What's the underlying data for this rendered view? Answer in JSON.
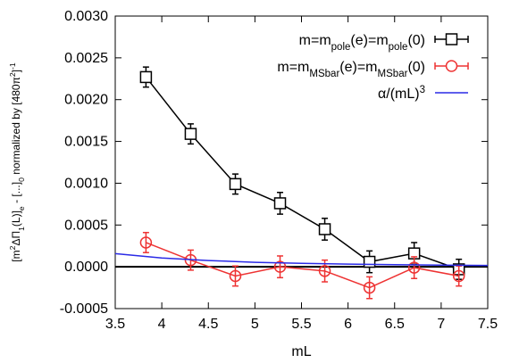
{
  "chart_data": {
    "type": "scatter",
    "xlabel": "mL",
    "ylabel": {
      "full": "[m²ΔΠ1(L)]e - [...]0 normalized by [480π²]⁻¹",
      "parts": [
        {
          "t": "[m",
          "s": "n"
        },
        {
          "t": "2",
          "s": "sup"
        },
        {
          "t": "ΔΠ",
          "s": "n"
        },
        {
          "t": "1",
          "s": "sub"
        },
        {
          "t": "(L)]",
          "s": "n"
        },
        {
          "t": "e",
          "s": "sub"
        },
        {
          "t": " - [...]",
          "s": "n"
        },
        {
          "t": "0",
          "s": "sub"
        },
        {
          "t": " normalized by [480π",
          "s": "n"
        },
        {
          "t": "2",
          "s": "sup"
        },
        {
          "t": "]",
          "s": "n"
        },
        {
          "t": "-1",
          "s": "sup"
        }
      ]
    },
    "xlim": [
      3.5,
      7.5
    ],
    "ylim": [
      -0.0005,
      0.003
    ],
    "xticks": [
      "3.5",
      "4",
      "4.5",
      "5",
      "5.5",
      "6",
      "6.5",
      "7",
      "7.5"
    ],
    "yticks": [
      "-0.0005",
      "0.0000",
      "0.0005",
      "0.0010",
      "0.0015",
      "0.0020",
      "0.0025",
      "0.0030"
    ],
    "zero_line": true,
    "grid": false,
    "legend_position": "top-right",
    "series": [
      {
        "name": "m=m_pole(e)=m_pole(0)",
        "legend_parts": [
          {
            "t": "m=m",
            "s": "n"
          },
          {
            "t": "pole",
            "s": "sub"
          },
          {
            "t": "(e)=m",
            "s": "n"
          },
          {
            "t": "pole",
            "s": "sub"
          },
          {
            "t": "(0)",
            "s": "n"
          }
        ],
        "marker": "square",
        "color": "#000000",
        "points": [
          {
            "x": 3.83,
            "y": 0.00227,
            "err": 0.00012
          },
          {
            "x": 4.31,
            "y": 0.00159,
            "err": 0.00012
          },
          {
            "x": 4.79,
            "y": 0.00099,
            "err": 0.00012
          },
          {
            "x": 5.27,
            "y": 0.00076,
            "err": 0.00013
          },
          {
            "x": 5.75,
            "y": 0.00045,
            "err": 0.00013
          },
          {
            "x": 6.23,
            "y": 6e-05,
            "err": 0.00013
          },
          {
            "x": 6.71,
            "y": 0.00016,
            "err": 0.00013
          },
          {
            "x": 7.19,
            "y": -3e-05,
            "err": 0.00012
          }
        ]
      },
      {
        "name": "m=m_MSbar(e)=m_MSbar(0)",
        "legend_parts": [
          {
            "t": "m=m",
            "s": "n"
          },
          {
            "t": "MSbar",
            "s": "sub"
          },
          {
            "t": "(e)=m",
            "s": "n"
          },
          {
            "t": "MSbar",
            "s": "sub"
          },
          {
            "t": "(0)",
            "s": "n"
          }
        ],
        "marker": "circle",
        "color": "#ee3333",
        "points": [
          {
            "x": 3.83,
            "y": 0.00029,
            "err": 0.00012
          },
          {
            "x": 4.31,
            "y": 8e-05,
            "err": 0.00012
          },
          {
            "x": 4.79,
            "y": -0.00011,
            "err": 0.00012
          },
          {
            "x": 5.27,
            "y": 0.0,
            "err": 0.00013
          },
          {
            "x": 5.75,
            "y": -5e-05,
            "err": 0.00013
          },
          {
            "x": 6.23,
            "y": -0.00025,
            "err": 0.00013
          },
          {
            "x": 6.71,
            "y": -1e-05,
            "err": 0.00013
          },
          {
            "x": 7.19,
            "y": -0.00011,
            "err": 0.00012
          }
        ]
      },
      {
        "name": "α/(mL)³",
        "legend_parts": [
          {
            "t": "α/(mL)",
            "s": "n"
          },
          {
            "t": "3",
            "s": "sup"
          }
        ],
        "type": "curve",
        "color": "#2a2ae6",
        "formula": "alpha/(mL)^3",
        "curve_points": [
          {
            "x": 3.5,
            "y": 0.000158
          },
          {
            "x": 4.0,
            "y": 0.000106
          },
          {
            "x": 4.5,
            "y": 7.5e-05
          },
          {
            "x": 5.0,
            "y": 5.4e-05
          },
          {
            "x": 5.5,
            "y": 4.1e-05
          },
          {
            "x": 6.0,
            "y": 3.2e-05
          },
          {
            "x": 6.5,
            "y": 2.5e-05
          },
          {
            "x": 7.0,
            "y": 2e-05
          },
          {
            "x": 7.5,
            "y": 1.6e-05
          }
        ]
      }
    ]
  }
}
